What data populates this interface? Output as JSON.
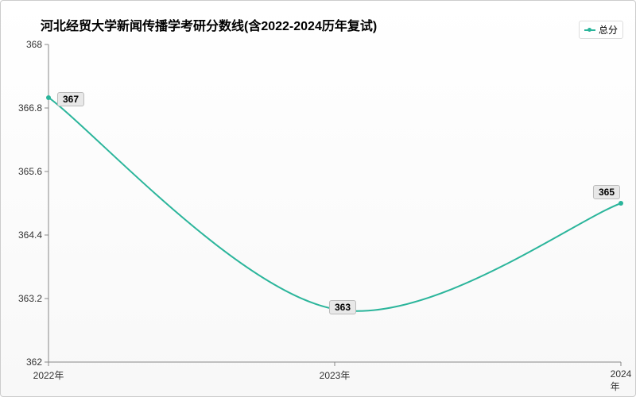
{
  "chart": {
    "type": "line",
    "title": "河北经贸大学新闻传播学考研分数线(含2022-2024历年复试)",
    "title_fontsize": 16,
    "title_color": "#000000",
    "legend": {
      "label": "总分",
      "position": "top-right"
    },
    "series_color": "#2bb59b",
    "line_width": 2,
    "marker_size": 6,
    "background_gradient_top": "#ffffff",
    "background_gradient_bottom": "#f5f5f5",
    "label_bg": "#e8e8e8",
    "label_border": "#bbbbbb",
    "axis_color": "#888888",
    "tick_font_size": 12,
    "x": {
      "categories": [
        "2022年",
        "2023年",
        "2024年"
      ]
    },
    "y": {
      "min": 362,
      "max": 368,
      "ticks": [
        362,
        363.2,
        364.4,
        365.6,
        366.8,
        368
      ]
    },
    "data": {
      "values": [
        367,
        363,
        365
      ],
      "labels": [
        "367",
        "363",
        "365"
      ]
    },
    "smooth": true
  }
}
